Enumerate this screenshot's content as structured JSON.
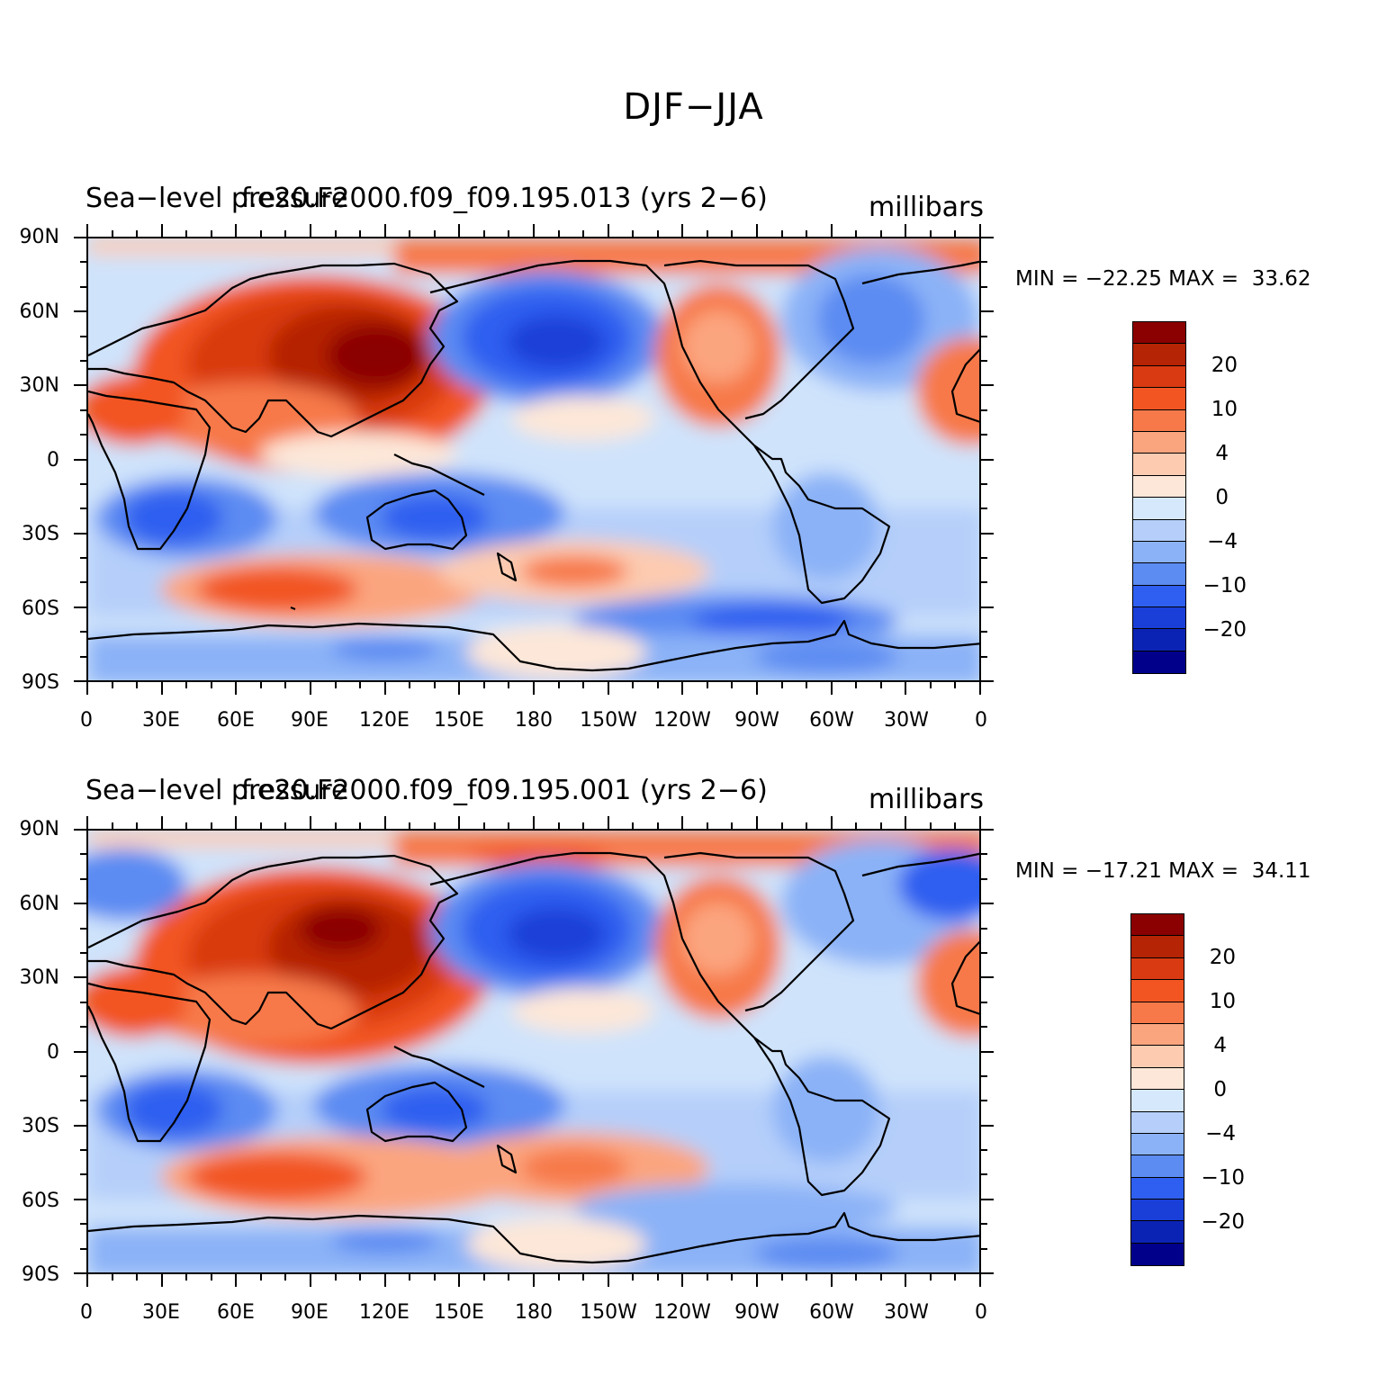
{
  "figure": {
    "title": "DJF−JJA"
  },
  "panels": [
    {
      "left_title": "Sea−level pressure",
      "case_title": "f.e20.F2000.f09_f09.195.013 (yrs 2−6)",
      "units": "millibars",
      "minmax": "MIN = −22.25 MAX =  33.62"
    },
    {
      "left_title": "Sea−level pressure",
      "case_title": "f.e20.F2000.f09_f09.195.001 (yrs 2−6)",
      "units": "millibars",
      "minmax": "MIN = −17.21 MAX =  34.11"
    }
  ],
  "axes": {
    "y_ticks": [
      "90N",
      "60N",
      "30N",
      "0",
      "30S",
      "60S",
      "90S"
    ],
    "x_ticks": [
      "0",
      "30E",
      "60E",
      "90E",
      "120E",
      "150E",
      "180",
      "150W",
      "120W",
      "90W",
      "60W",
      "30W",
      "0"
    ]
  },
  "colorbar": {
    "colors": [
      "#8b0000",
      "#b52404",
      "#d93a11",
      "#f25522",
      "#f7794a",
      "#fba57f",
      "#fdcbb0",
      "#fde7d8",
      "#d6e8fc",
      "#b5cffa",
      "#8bb2f7",
      "#5c8bf2",
      "#2f5ff0",
      "#1a3fd8",
      "#0b23b5",
      "#00008b"
    ],
    "labels": [
      "20",
      "10",
      "4",
      "0",
      "−4",
      "−10",
      "−20"
    ]
  },
  "map_colors": {
    "ocean_base": "#cfe3fb",
    "land_outline": "#000000"
  }
}
